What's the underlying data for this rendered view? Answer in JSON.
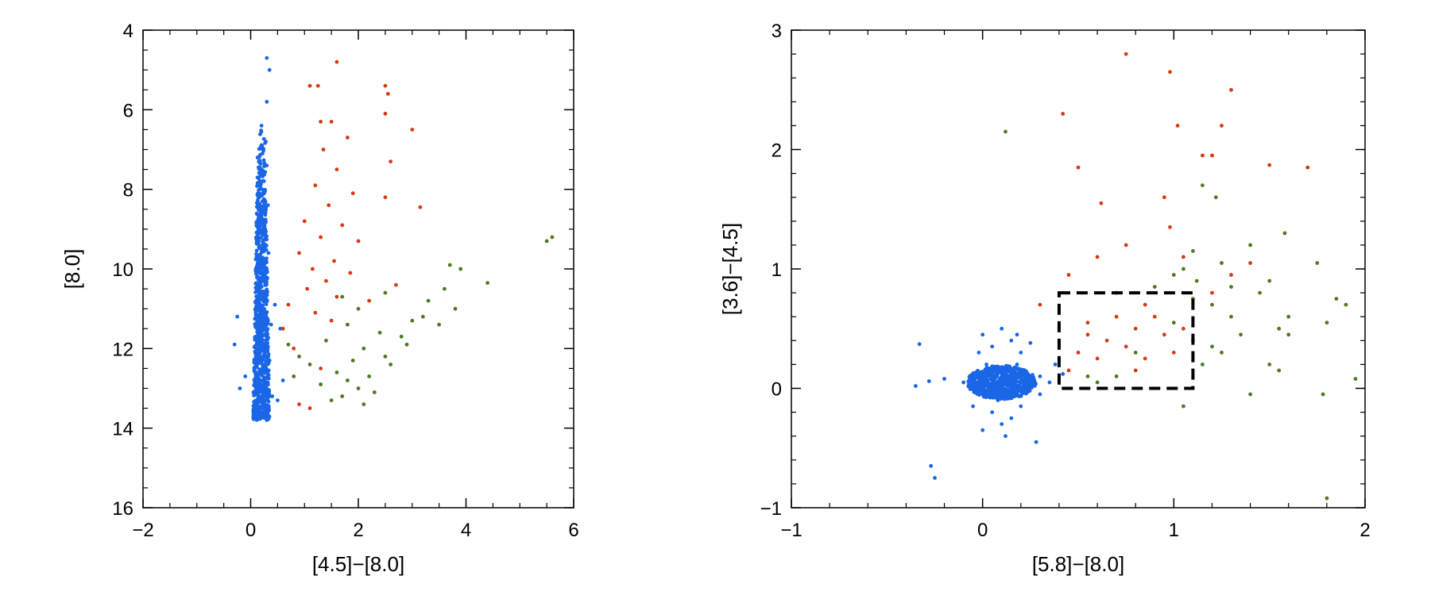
{
  "chart_data": [
    {
      "type": "scatter",
      "xlabel": "[4.5]−[8.0]",
      "ylabel": "[8.0]",
      "xlim": [
        -2,
        6
      ],
      "ylim": [
        16,
        4
      ],
      "y_inverted": true,
      "xticks": [
        -2,
        0,
        2,
        4,
        6
      ],
      "xtick_labels": [
        "−2",
        "0",
        "2",
        "4",
        "6"
      ],
      "yticks": [
        4,
        6,
        8,
        10,
        12,
        14,
        16
      ],
      "ytick_labels": [
        "4",
        "6",
        "8",
        "10",
        "12",
        "14",
        "16"
      ],
      "grid": false,
      "legend": "none",
      "series": [
        {
          "color": "#1a66e6",
          "points": [
            [
              0.3,
              4.7
            ],
            [
              0.35,
              5.0
            ],
            [
              0.3,
              5.8
            ],
            [
              0.2,
              6.4
            ],
            [
              0.28,
              6.8
            ],
            [
              0.22,
              7.1
            ],
            [
              0.3,
              7.4
            ],
            [
              0.18,
              7.8
            ],
            [
              0.25,
              8.1
            ],
            [
              0.32,
              8.4
            ],
            [
              0.2,
              8.7
            ],
            [
              0.27,
              9.0
            ],
            [
              0.15,
              9.3
            ],
            [
              0.33,
              9.6
            ],
            [
              0.22,
              9.9
            ],
            [
              0.28,
              10.2
            ],
            [
              0.12,
              10.5
            ],
            [
              0.3,
              10.8
            ],
            [
              0.2,
              11.1
            ],
            [
              0.38,
              11.4
            ],
            [
              0.1,
              11.7
            ],
            [
              0.25,
              12.0
            ],
            [
              0.35,
              12.3
            ],
            [
              0.15,
              12.6
            ],
            [
              0.28,
              12.9
            ],
            [
              0.05,
              13.1
            ],
            [
              0.4,
              13.2
            ],
            [
              0.2,
              13.5
            ],
            [
              0.1,
              13.7
            ],
            [
              0.3,
              13.8
            ],
            [
              -0.2,
              13.0
            ],
            [
              -0.3,
              11.9
            ],
            [
              -0.25,
              11.2
            ],
            [
              0.6,
              12.8
            ],
            [
              0.55,
              11.5
            ],
            [
              0.5,
              13.3
            ],
            [
              -0.1,
              12.7
            ],
            [
              0.45,
              10.9
            ]
          ]
        },
        {
          "color": "#d63a12",
          "points": [
            [
              1.6,
              4.8
            ],
            [
              1.1,
              5.4
            ],
            [
              1.25,
              5.4
            ],
            [
              2.5,
              5.4
            ],
            [
              2.55,
              5.6
            ],
            [
              2.5,
              6.1
            ],
            [
              3.0,
              6.5
            ],
            [
              1.3,
              6.3
            ],
            [
              1.5,
              6.3
            ],
            [
              1.8,
              6.7
            ],
            [
              1.35,
              7.0
            ],
            [
              1.6,
              7.5
            ],
            [
              2.6,
              7.3
            ],
            [
              1.2,
              7.9
            ],
            [
              1.9,
              8.1
            ],
            [
              1.45,
              8.4
            ],
            [
              2.5,
              8.2
            ],
            [
              3.15,
              8.45
            ],
            [
              1.0,
              8.8
            ],
            [
              1.7,
              8.9
            ],
            [
              1.3,
              9.2
            ],
            [
              2.0,
              9.3
            ],
            [
              0.9,
              9.6
            ],
            [
              1.55,
              9.8
            ],
            [
              1.15,
              10.0
            ],
            [
              1.85,
              10.1
            ],
            [
              1.4,
              10.3
            ],
            [
              2.7,
              10.4
            ],
            [
              1.05,
              10.5
            ],
            [
              0.7,
              10.9
            ],
            [
              1.2,
              11.1
            ],
            [
              0.6,
              11.5
            ],
            [
              1.6,
              10.7
            ],
            [
              2.2,
              10.8
            ],
            [
              1.5,
              11.3
            ],
            [
              0.8,
              12.0
            ],
            [
              1.3,
              12.5
            ],
            [
              0.9,
              13.4
            ],
            [
              1.1,
              13.5
            ]
          ]
        },
        {
          "color": "#4f7a1f",
          "points": [
            [
              5.6,
              9.2
            ],
            [
              5.5,
              9.3
            ],
            [
              3.7,
              9.9
            ],
            [
              3.9,
              10.0
            ],
            [
              4.4,
              10.35
            ],
            [
              3.6,
              10.5
            ],
            [
              3.3,
              10.8
            ],
            [
              3.8,
              11.0
            ],
            [
              2.5,
              10.6
            ],
            [
              2.0,
              11.0
            ],
            [
              3.0,
              11.3
            ],
            [
              3.5,
              11.4
            ],
            [
              1.7,
              10.7
            ],
            [
              1.8,
              11.4
            ],
            [
              2.4,
              11.6
            ],
            [
              1.4,
              11.8
            ],
            [
              2.9,
              11.9
            ],
            [
              2.1,
              12.0
            ],
            [
              1.9,
              12.3
            ],
            [
              2.6,
              12.4
            ],
            [
              1.6,
              12.6
            ],
            [
              2.2,
              12.7
            ],
            [
              1.3,
              12.9
            ],
            [
              2.0,
              13.0
            ],
            [
              1.7,
              13.2
            ],
            [
              2.3,
              13.1
            ],
            [
              0.9,
              12.2
            ],
            [
              1.1,
              12.4
            ],
            [
              0.8,
              12.7
            ],
            [
              0.7,
              11.9
            ],
            [
              1.8,
              12.8
            ],
            [
              2.5,
              12.2
            ],
            [
              2.8,
              11.7
            ],
            [
              3.2,
              11.2
            ],
            [
              1.5,
              13.3
            ],
            [
              2.1,
              13.4
            ]
          ]
        }
      ]
    },
    {
      "type": "scatter",
      "xlabel": "[5.8]−[8.0]",
      "ylabel": "[3.6]−[4.5]",
      "xlim": [
        -1,
        2
      ],
      "ylim": [
        -1,
        3
      ],
      "xticks": [
        -1,
        0,
        1,
        2
      ],
      "xtick_labels": [
        "−1",
        "0",
        "1",
        "2"
      ],
      "yticks": [
        -1,
        0,
        1,
        2,
        3
      ],
      "ytick_labels": [
        "−1",
        "0",
        "1",
        "2",
        "3"
      ],
      "grid": false,
      "legend": "none",
      "box": {
        "x0": 0.4,
        "x1": 1.1,
        "y0": 0.0,
        "y1": 0.8,
        "style": "dashed"
      },
      "series": [
        {
          "color": "#1a66e6",
          "points": [
            [
              0.1,
              0.05
            ],
            [
              0.05,
              0.1
            ],
            [
              0.15,
              0.0
            ],
            [
              0.0,
              0.05
            ],
            [
              0.2,
              0.1
            ],
            [
              0.1,
              -0.05
            ],
            [
              0.12,
              0.15
            ],
            [
              0.08,
              -0.1
            ],
            [
              0.18,
              0.2
            ],
            [
              0.02,
              0.2
            ],
            [
              -0.05,
              0.0
            ],
            [
              0.25,
              0.05
            ],
            [
              0.3,
              0.1
            ],
            [
              0.35,
              0.05
            ],
            [
              -0.1,
              0.05
            ],
            [
              -0.2,
              0.08
            ],
            [
              0.05,
              0.35
            ],
            [
              0.15,
              0.4
            ],
            [
              0.1,
              0.5
            ],
            [
              0.0,
              0.45
            ],
            [
              0.2,
              0.3
            ],
            [
              0.05,
              -0.2
            ],
            [
              0.15,
              -0.25
            ],
            [
              0.1,
              -0.3
            ],
            [
              0.0,
              -0.35
            ],
            [
              -0.35,
              0.02
            ],
            [
              -0.28,
              0.06
            ],
            [
              0.3,
              -0.05
            ],
            [
              -0.05,
              -0.15
            ],
            [
              -0.27,
              -0.65
            ],
            [
              -0.25,
              -0.75
            ],
            [
              0.28,
              -0.45
            ],
            [
              -0.33,
              0.37
            ],
            [
              0.18,
              0.45
            ],
            [
              0.38,
              0.2
            ],
            [
              0.42,
              0.12
            ],
            [
              0.25,
              0.38
            ],
            [
              -0.02,
              0.3
            ],
            [
              0.12,
              -0.4
            ],
            [
              0.2,
              -0.15
            ]
          ]
        },
        {
          "color": "#d63a12",
          "points": [
            [
              0.75,
              2.8
            ],
            [
              0.98,
              2.65
            ],
            [
              1.3,
              2.5
            ],
            [
              0.42,
              2.3
            ],
            [
              1.25,
              2.2
            ],
            [
              1.02,
              2.2
            ],
            [
              0.5,
              1.85
            ],
            [
              1.15,
              1.95
            ],
            [
              1.2,
              1.95
            ],
            [
              1.5,
              1.87
            ],
            [
              1.7,
              1.85
            ],
            [
              0.62,
              1.55
            ],
            [
              0.95,
              1.6
            ],
            [
              0.98,
              1.35
            ],
            [
              0.75,
              1.2
            ],
            [
              1.05,
              1.1
            ],
            [
              0.6,
              1.1
            ],
            [
              0.45,
              0.95
            ],
            [
              0.7,
              0.8
            ],
            [
              0.85,
              0.7
            ],
            [
              0.55,
              0.55
            ],
            [
              0.8,
              0.5
            ],
            [
              0.95,
              0.45
            ],
            [
              0.65,
              0.4
            ],
            [
              0.75,
              0.35
            ],
            [
              0.9,
              0.6
            ],
            [
              1.05,
              0.5
            ],
            [
              0.5,
              0.3
            ],
            [
              0.6,
              0.25
            ],
            [
              0.85,
              0.25
            ],
            [
              0.45,
              0.15
            ],
            [
              0.3,
              0.7
            ],
            [
              1.2,
              0.8
            ],
            [
              1.3,
              0.95
            ],
            [
              1.4,
              1.05
            ],
            [
              1.0,
              0.3
            ],
            [
              0.7,
              0.6
            ],
            [
              0.55,
              0.45
            ],
            [
              1.1,
              0.4
            ],
            [
              0.8,
              0.15
            ]
          ]
        },
        {
          "color": "#4f7a1f",
          "points": [
            [
              0.12,
              2.15
            ],
            [
              1.15,
              1.7
            ],
            [
              1.22,
              1.6
            ],
            [
              1.1,
              1.15
            ],
            [
              1.4,
              1.2
            ],
            [
              1.58,
              1.3
            ],
            [
              1.05,
              1.0
            ],
            [
              1.0,
              0.95
            ],
            [
              1.12,
              0.9
            ],
            [
              1.25,
              1.05
            ],
            [
              1.3,
              0.85
            ],
            [
              1.1,
              0.75
            ],
            [
              1.2,
              0.7
            ],
            [
              1.45,
              0.8
            ],
            [
              1.6,
              0.6
            ],
            [
              1.75,
              1.05
            ],
            [
              1.85,
              0.75
            ],
            [
              1.9,
              0.7
            ],
            [
              1.55,
              0.5
            ],
            [
              1.6,
              0.45
            ],
            [
              1.35,
              0.45
            ],
            [
              1.5,
              0.2
            ],
            [
              1.55,
              0.15
            ],
            [
              1.8,
              0.55
            ],
            [
              1.95,
              0.08
            ],
            [
              1.78,
              -0.05
            ],
            [
              1.8,
              -0.92
            ],
            [
              1.25,
              0.3
            ],
            [
              1.0,
              0.55
            ],
            [
              0.9,
              0.85
            ],
            [
              0.8,
              0.3
            ],
            [
              0.7,
              0.1
            ],
            [
              1.15,
              0.2
            ],
            [
              1.4,
              -0.05
            ],
            [
              1.05,
              -0.15
            ],
            [
              0.55,
              0.1
            ],
            [
              0.6,
              0.05
            ],
            [
              1.3,
              0.6
            ],
            [
              1.5,
              0.9
            ],
            [
              1.2,
              0.35
            ]
          ]
        }
      ]
    }
  ]
}
